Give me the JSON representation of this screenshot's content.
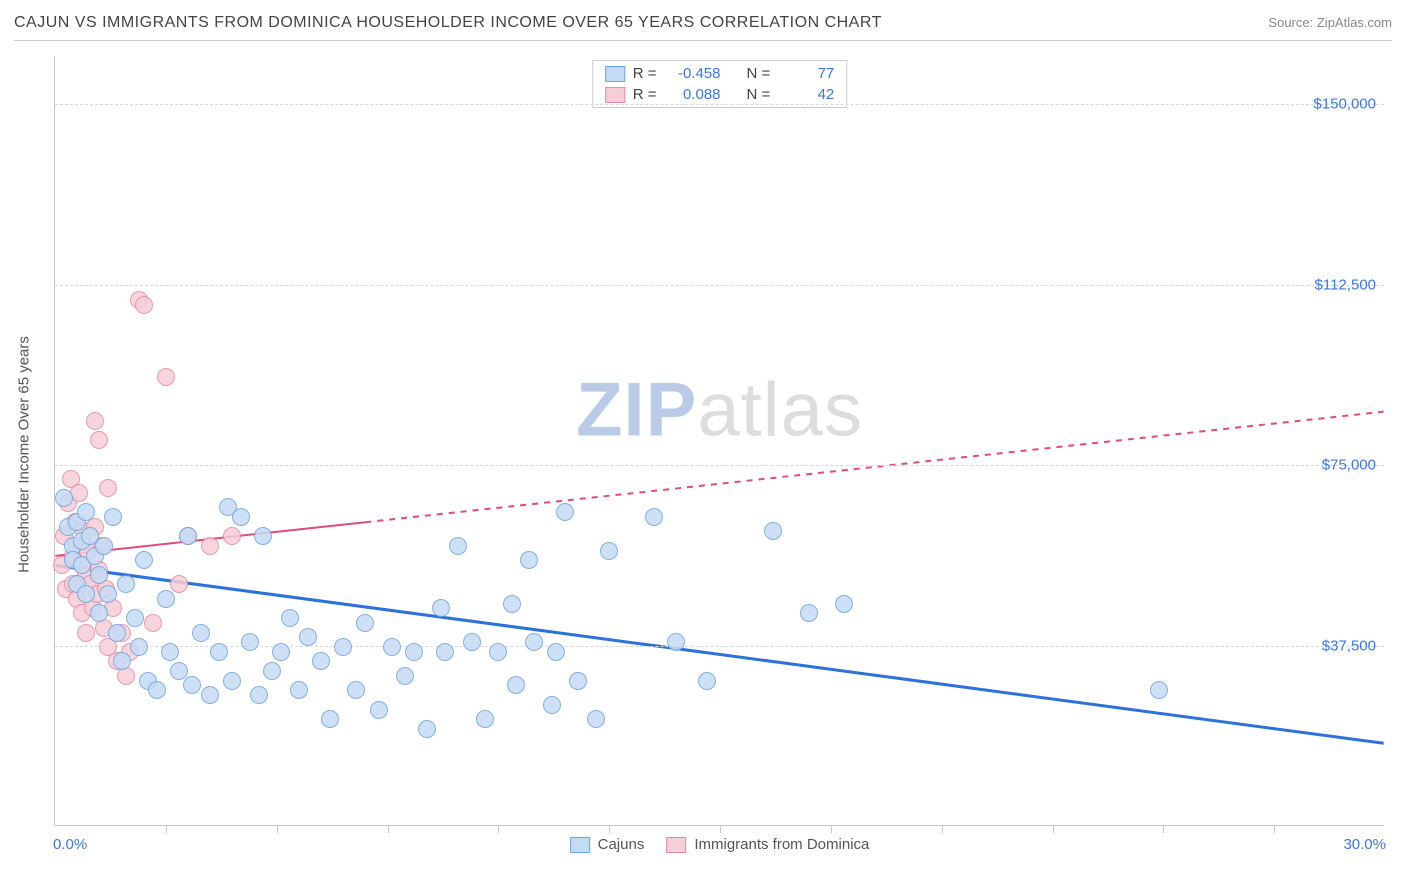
{
  "meta": {
    "title": "CAJUN VS IMMIGRANTS FROM DOMINICA HOUSEHOLDER INCOME OVER 65 YEARS CORRELATION CHART",
    "source_label": "Source:",
    "source_name": "ZipAtlas.com",
    "watermark_a": "ZIP",
    "watermark_b": "atlas"
  },
  "chart": {
    "type": "scatter",
    "y_axis_label": "Householder Income Over 65 years",
    "xlim": [
      0.0,
      30.0
    ],
    "ylim": [
      0,
      160000
    ],
    "x_min_label": "0.0%",
    "x_max_label": "30.0%",
    "x_ticks": [
      2.5,
      5.0,
      7.5,
      10.0,
      12.5,
      15.0,
      17.5,
      20.0,
      22.5,
      25.0,
      27.5
    ],
    "y_grid": [
      {
        "value": 37500,
        "label": "$37,500"
      },
      {
        "value": 75000,
        "label": "$75,000"
      },
      {
        "value": 112500,
        "label": "$112,500"
      },
      {
        "value": 150000,
        "label": "$150,000"
      }
    ],
    "grid_color": "#d8d8d8",
    "axis_color": "#c8c8c8",
    "label_color": "#3b78e7",
    "background_color": "#ffffff",
    "marker_radius": 9,
    "marker_stroke_width": 1
  },
  "series": {
    "cajuns": {
      "label": "Cajuns",
      "R": "-0.458",
      "N": "77",
      "fill": "#c5dbf5",
      "stroke": "#6fa3e0",
      "line_color": "#2d72d9",
      "line_width": 3,
      "trend": {
        "x1": 0.0,
        "y1": 54000,
        "x2": 30.0,
        "y2": 17000
      },
      "solid_to_x": 30.0,
      "points": [
        [
          0.2,
          68000
        ],
        [
          0.3,
          62000
        ],
        [
          0.4,
          58000
        ],
        [
          0.4,
          55000
        ],
        [
          0.5,
          63000
        ],
        [
          0.5,
          50000
        ],
        [
          0.6,
          59000
        ],
        [
          0.6,
          54000
        ],
        [
          0.7,
          65000
        ],
        [
          0.7,
          48000
        ],
        [
          0.8,
          60000
        ],
        [
          0.9,
          56000
        ],
        [
          1.0,
          52000
        ],
        [
          1.0,
          44000
        ],
        [
          1.1,
          58000
        ],
        [
          1.2,
          48000
        ],
        [
          1.3,
          64000
        ],
        [
          1.4,
          40000
        ],
        [
          1.5,
          34000
        ],
        [
          1.6,
          50000
        ],
        [
          1.8,
          43000
        ],
        [
          1.9,
          37000
        ],
        [
          2.0,
          55000
        ],
        [
          2.1,
          30000
        ],
        [
          2.3,
          28000
        ],
        [
          2.5,
          47000
        ],
        [
          2.6,
          36000
        ],
        [
          2.8,
          32000
        ],
        [
          3.0,
          60000
        ],
        [
          3.1,
          29000
        ],
        [
          3.3,
          40000
        ],
        [
          3.5,
          27000
        ],
        [
          3.7,
          36000
        ],
        [
          3.9,
          66000
        ],
        [
          4.0,
          30000
        ],
        [
          4.2,
          64000
        ],
        [
          4.4,
          38000
        ],
        [
          4.6,
          27000
        ],
        [
          4.7,
          60000
        ],
        [
          4.9,
          32000
        ],
        [
          5.1,
          36000
        ],
        [
          5.3,
          43000
        ],
        [
          5.5,
          28000
        ],
        [
          5.7,
          39000
        ],
        [
          6.0,
          34000
        ],
        [
          6.2,
          22000
        ],
        [
          6.5,
          37000
        ],
        [
          6.8,
          28000
        ],
        [
          7.0,
          42000
        ],
        [
          7.3,
          24000
        ],
        [
          7.6,
          37000
        ],
        [
          7.9,
          31000
        ],
        [
          8.1,
          36000
        ],
        [
          8.4,
          20000
        ],
        [
          8.7,
          45000
        ],
        [
          8.8,
          36000
        ],
        [
          9.1,
          58000
        ],
        [
          9.4,
          38000
        ],
        [
          9.7,
          22000
        ],
        [
          10.0,
          36000
        ],
        [
          10.4,
          29000
        ],
        [
          10.7,
          55000
        ],
        [
          10.8,
          38000
        ],
        [
          11.2,
          25000
        ],
        [
          11.3,
          36000
        ],
        [
          11.5,
          65000
        ],
        [
          11.8,
          30000
        ],
        [
          12.2,
          22000
        ],
        [
          12.5,
          57000
        ],
        [
          13.5,
          64000
        ],
        [
          14.0,
          38000
        ],
        [
          14.7,
          30000
        ],
        [
          16.2,
          61000
        ],
        [
          17.0,
          44000
        ],
        [
          17.8,
          46000
        ],
        [
          24.9,
          28000
        ],
        [
          10.3,
          46000
        ]
      ]
    },
    "dominica": {
      "label": "Immigigrants from Dominica",
      "label_fixed": "Immigrants from Dominica",
      "R": "0.088",
      "N": "42",
      "fill": "#f7cdd8",
      "stroke": "#e68aa3",
      "line_color": "#e04b7c",
      "line_width": 2,
      "trend": {
        "x1": 0.0,
        "y1": 56000,
        "x2": 30.0,
        "y2": 86000
      },
      "solid_to_x": 7.0,
      "points": [
        [
          0.15,
          54000
        ],
        [
          0.2,
          60000
        ],
        [
          0.25,
          49000
        ],
        [
          0.3,
          67000
        ],
        [
          0.35,
          72000
        ],
        [
          0.4,
          56000
        ],
        [
          0.4,
          50000
        ],
        [
          0.45,
          63000
        ],
        [
          0.5,
          58000
        ],
        [
          0.5,
          47000
        ],
        [
          0.55,
          69000
        ],
        [
          0.6,
          54000
        ],
        [
          0.6,
          44000
        ],
        [
          0.65,
          61000
        ],
        [
          0.7,
          52000
        ],
        [
          0.7,
          40000
        ],
        [
          0.75,
          57000
        ],
        [
          0.8,
          50000
        ],
        [
          0.85,
          45000
        ],
        [
          0.9,
          62000
        ],
        [
          0.95,
          48000
        ],
        [
          1.0,
          53000
        ],
        [
          1.05,
          58000
        ],
        [
          1.1,
          41000
        ],
        [
          1.15,
          49000
        ],
        [
          1.2,
          37000
        ],
        [
          1.3,
          45000
        ],
        [
          1.4,
          34000
        ],
        [
          1.5,
          40000
        ],
        [
          1.6,
          31000
        ],
        [
          1.7,
          36000
        ],
        [
          0.9,
          84000
        ],
        [
          1.0,
          80000
        ],
        [
          1.9,
          109000
        ],
        [
          2.0,
          108000
        ],
        [
          2.5,
          93000
        ],
        [
          1.2,
          70000
        ],
        [
          2.8,
          50000
        ],
        [
          3.0,
          60000
        ],
        [
          3.5,
          58000
        ],
        [
          4.0,
          60000
        ],
        [
          2.2,
          42000
        ]
      ]
    }
  },
  "legend_top": {
    "r_label": "R =",
    "n_label": "N ="
  }
}
